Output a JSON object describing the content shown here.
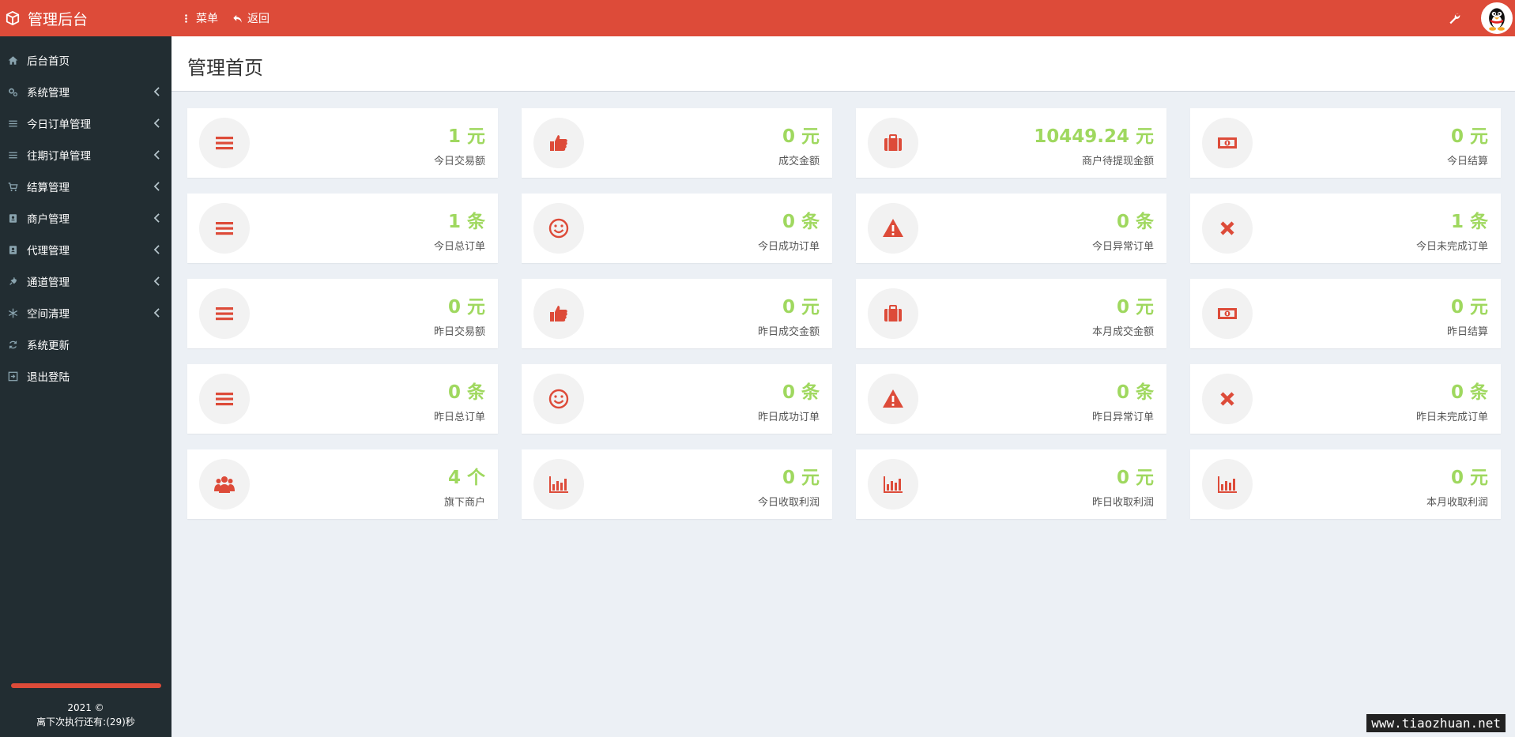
{
  "header": {
    "brand": "管理后台",
    "menu_label": "菜单",
    "back_label": "返回"
  },
  "sidebar": {
    "items": [
      {
        "label": "后台首页",
        "icon": "home-icon",
        "chevron": false
      },
      {
        "label": "系统管理",
        "icon": "gears-icon",
        "chevron": true
      },
      {
        "label": "今日订单管理",
        "icon": "list-icon",
        "chevron": true
      },
      {
        "label": "往期订单管理",
        "icon": "list-icon",
        "chevron": true
      },
      {
        "label": "结算管理",
        "icon": "cart-icon",
        "chevron": true
      },
      {
        "label": "商户管理",
        "icon": "contact-book-icon",
        "chevron": true
      },
      {
        "label": "代理管理",
        "icon": "contact-book-icon",
        "chevron": true
      },
      {
        "label": "通道管理",
        "icon": "plug-icon",
        "chevron": true
      },
      {
        "label": "空间清理",
        "icon": "snowflake-icon",
        "chevron": true
      },
      {
        "label": "系统更新",
        "icon": "refresh-icon",
        "chevron": false
      },
      {
        "label": "退出登陆",
        "icon": "logout-icon",
        "chevron": false
      }
    ],
    "footer_year": "2021 ©",
    "footer_timer": "离下次执行还有:(29)秒"
  },
  "page": {
    "title": "管理首页"
  },
  "cards": [
    {
      "value": "1 元",
      "label": "今日交易额",
      "icon": "bars-icon"
    },
    {
      "value": "0 元",
      "label": "成交金额",
      "icon": "thumbs-up-icon"
    },
    {
      "value": "10449.24 元",
      "label": "商户待提现金额",
      "icon": "briefcase-icon"
    },
    {
      "value": "0 元",
      "label": "今日结算",
      "icon": "money-icon"
    },
    {
      "value": "1 条",
      "label": "今日总订单",
      "icon": "bars-icon"
    },
    {
      "value": "0 条",
      "label": "今日成功订单",
      "icon": "smile-icon"
    },
    {
      "value": "0 条",
      "label": "今日异常订单",
      "icon": "warning-icon"
    },
    {
      "value": "1 条",
      "label": "今日未完成订单",
      "icon": "close-icon"
    },
    {
      "value": "0 元",
      "label": "昨日交易额",
      "icon": "bars-icon"
    },
    {
      "value": "0 元",
      "label": "昨日成交金额",
      "icon": "thumbs-up-icon"
    },
    {
      "value": "0 元",
      "label": "本月成交金额",
      "icon": "briefcase-icon"
    },
    {
      "value": "0 元",
      "label": "昨日结算",
      "icon": "money-icon"
    },
    {
      "value": "0 条",
      "label": "昨日总订单",
      "icon": "bars-icon"
    },
    {
      "value": "0 条",
      "label": "昨日成功订单",
      "icon": "smile-icon"
    },
    {
      "value": "0 条",
      "label": "昨日异常订单",
      "icon": "warning-icon"
    },
    {
      "value": "0 条",
      "label": "昨日未完成订单",
      "icon": "close-icon"
    },
    {
      "value": "4 个",
      "label": "旗下商户",
      "icon": "users-icon"
    },
    {
      "value": "0 元",
      "label": "今日收取利润",
      "icon": "bar-chart-icon"
    },
    {
      "value": "0 元",
      "label": "昨日收取利润",
      "icon": "bar-chart-icon"
    },
    {
      "value": "0 元",
      "label": "本月收取利润",
      "icon": "bar-chart-icon"
    }
  ],
  "watermark": "www.tiaozhuan.net",
  "colors": {
    "accent": "#dd4b39",
    "sidebar": "#222d32",
    "value": "#9fd85f"
  }
}
